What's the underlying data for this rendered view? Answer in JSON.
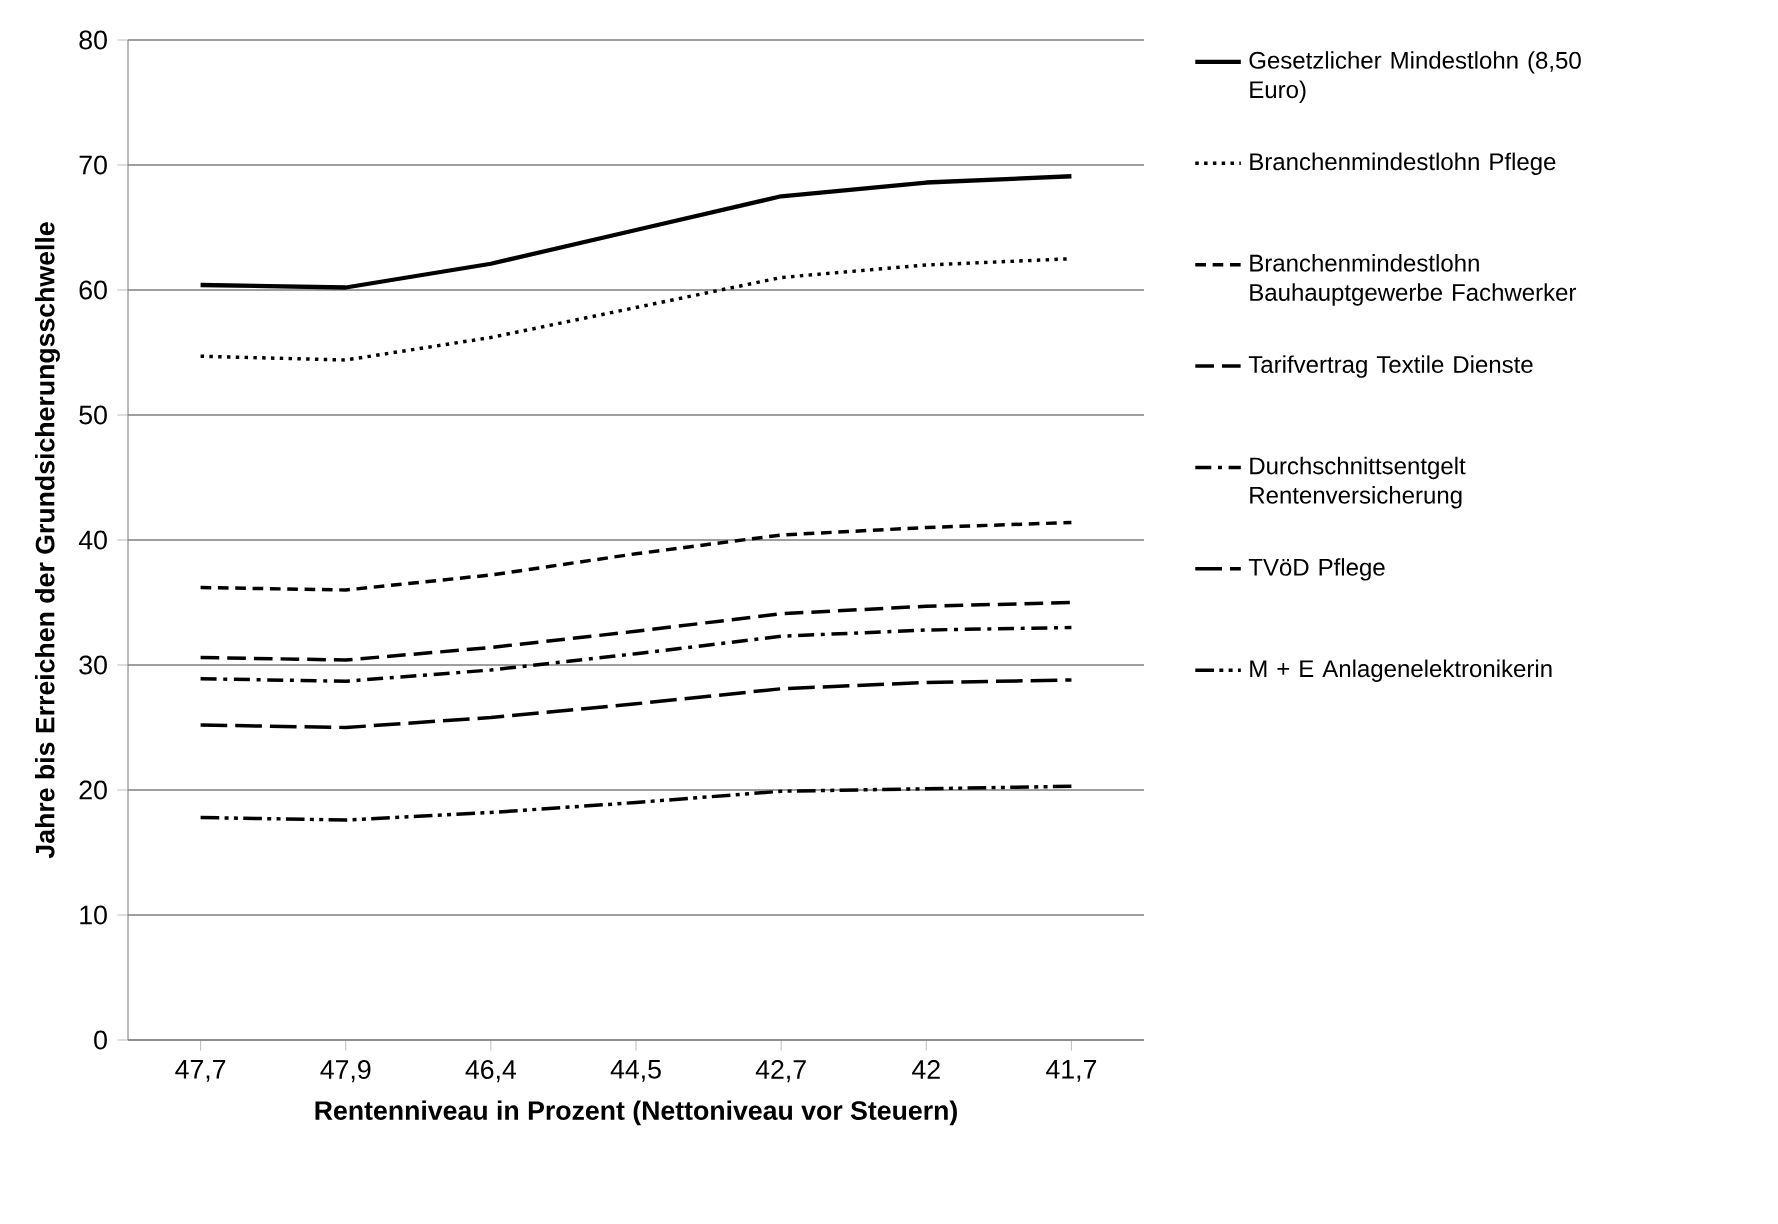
{
  "chart_data": {
    "type": "line",
    "xlabel": "Rentenniveau in Prozent (Nettoniveau vor Steuern)",
    "ylabel": "Jahre bis Erreichen der Grundsicherungsschwelle",
    "categories": [
      "47,7",
      "47,9",
      "46,4",
      "44,5",
      "42,7",
      "42",
      "41,7"
    ],
    "ylim": [
      0,
      80
    ],
    "yticks": [
      0,
      10,
      20,
      30,
      40,
      50,
      60,
      70,
      80
    ],
    "grid": "y",
    "legend": "right",
    "marker": "none",
    "series": [
      {
        "name": "Gesetzlicher Mindestlohn (8,50 Euro)",
        "color": "#000000",
        "line_style": "solid",
        "values": [
          60.4,
          60.2,
          62.1,
          64.8,
          67.5,
          68.6,
          69.1
        ]
      },
      {
        "name": "Branchenmindestlohn Pflege",
        "color": "#000000",
        "line_style": "dotted",
        "values": [
          54.7,
          54.4,
          56.2,
          58.6,
          61.0,
          62.0,
          62.5
        ]
      },
      {
        "name": "Branchenmindestlohn Bauhauptgewerbe Fachwerker",
        "color": "#000000",
        "line_style": "dashed",
        "values": [
          36.2,
          36.0,
          37.2,
          38.9,
          40.4,
          41.0,
          41.4
        ]
      },
      {
        "name": "Tarifvertrag Textile Dienste",
        "color": "#000000",
        "line_style": "longdash",
        "values": [
          30.6,
          30.4,
          31.4,
          32.7,
          34.1,
          34.7,
          35.0
        ]
      },
      {
        "name": "Durchschnittsentgelt Rentenversicherung",
        "color": "#000000",
        "line_style": "dashdot",
        "values": [
          28.9,
          28.7,
          29.6,
          30.9,
          32.3,
          32.8,
          33.0
        ]
      },
      {
        "name": "TVöD Pflege",
        "color": "#000000",
        "line_style": "verylongdash",
        "values": [
          25.2,
          25.0,
          25.8,
          26.9,
          28.1,
          28.6,
          28.8
        ]
      },
      {
        "name": "M + E Anlagenelektronikerin",
        "color": "#000000",
        "line_style": "dashdotdot",
        "values": [
          17.8,
          17.6,
          18.2,
          19.0,
          19.9,
          20.1,
          20.3
        ]
      }
    ]
  }
}
